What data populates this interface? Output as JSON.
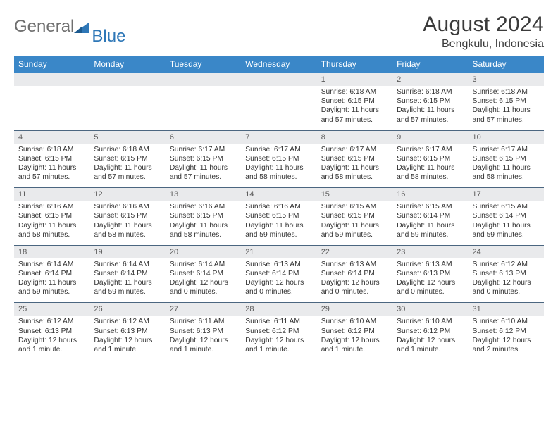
{
  "brand": {
    "name1": "General",
    "name2": "Blue"
  },
  "title": "August 2024",
  "subtitle": "Bengkulu, Indonesia",
  "header_bg": "#3a87c8",
  "daynum_bg": "#e9eaec",
  "daynum_border": "#4b6680",
  "weekdays": [
    "Sunday",
    "Monday",
    "Tuesday",
    "Wednesday",
    "Thursday",
    "Friday",
    "Saturday"
  ],
  "weeks": [
    [
      null,
      null,
      null,
      null,
      {
        "d": "1",
        "sr": "6:18 AM",
        "ss": "6:15 PM",
        "dl": "11 hours and 57 minutes."
      },
      {
        "d": "2",
        "sr": "6:18 AM",
        "ss": "6:15 PM",
        "dl": "11 hours and 57 minutes."
      },
      {
        "d": "3",
        "sr": "6:18 AM",
        "ss": "6:15 PM",
        "dl": "11 hours and 57 minutes."
      }
    ],
    [
      {
        "d": "4",
        "sr": "6:18 AM",
        "ss": "6:15 PM",
        "dl": "11 hours and 57 minutes."
      },
      {
        "d": "5",
        "sr": "6:18 AM",
        "ss": "6:15 PM",
        "dl": "11 hours and 57 minutes."
      },
      {
        "d": "6",
        "sr": "6:17 AM",
        "ss": "6:15 PM",
        "dl": "11 hours and 57 minutes."
      },
      {
        "d": "7",
        "sr": "6:17 AM",
        "ss": "6:15 PM",
        "dl": "11 hours and 58 minutes."
      },
      {
        "d": "8",
        "sr": "6:17 AM",
        "ss": "6:15 PM",
        "dl": "11 hours and 58 minutes."
      },
      {
        "d": "9",
        "sr": "6:17 AM",
        "ss": "6:15 PM",
        "dl": "11 hours and 58 minutes."
      },
      {
        "d": "10",
        "sr": "6:17 AM",
        "ss": "6:15 PM",
        "dl": "11 hours and 58 minutes."
      }
    ],
    [
      {
        "d": "11",
        "sr": "6:16 AM",
        "ss": "6:15 PM",
        "dl": "11 hours and 58 minutes."
      },
      {
        "d": "12",
        "sr": "6:16 AM",
        "ss": "6:15 PM",
        "dl": "11 hours and 58 minutes."
      },
      {
        "d": "13",
        "sr": "6:16 AM",
        "ss": "6:15 PM",
        "dl": "11 hours and 58 minutes."
      },
      {
        "d": "14",
        "sr": "6:16 AM",
        "ss": "6:15 PM",
        "dl": "11 hours and 59 minutes."
      },
      {
        "d": "15",
        "sr": "6:15 AM",
        "ss": "6:15 PM",
        "dl": "11 hours and 59 minutes."
      },
      {
        "d": "16",
        "sr": "6:15 AM",
        "ss": "6:14 PM",
        "dl": "11 hours and 59 minutes."
      },
      {
        "d": "17",
        "sr": "6:15 AM",
        "ss": "6:14 PM",
        "dl": "11 hours and 59 minutes."
      }
    ],
    [
      {
        "d": "18",
        "sr": "6:14 AM",
        "ss": "6:14 PM",
        "dl": "11 hours and 59 minutes."
      },
      {
        "d": "19",
        "sr": "6:14 AM",
        "ss": "6:14 PM",
        "dl": "11 hours and 59 minutes."
      },
      {
        "d": "20",
        "sr": "6:14 AM",
        "ss": "6:14 PM",
        "dl": "12 hours and 0 minutes."
      },
      {
        "d": "21",
        "sr": "6:13 AM",
        "ss": "6:14 PM",
        "dl": "12 hours and 0 minutes."
      },
      {
        "d": "22",
        "sr": "6:13 AM",
        "ss": "6:14 PM",
        "dl": "12 hours and 0 minutes."
      },
      {
        "d": "23",
        "sr": "6:13 AM",
        "ss": "6:13 PM",
        "dl": "12 hours and 0 minutes."
      },
      {
        "d": "24",
        "sr": "6:12 AM",
        "ss": "6:13 PM",
        "dl": "12 hours and 0 minutes."
      }
    ],
    [
      {
        "d": "25",
        "sr": "6:12 AM",
        "ss": "6:13 PM",
        "dl": "12 hours and 1 minute."
      },
      {
        "d": "26",
        "sr": "6:12 AM",
        "ss": "6:13 PM",
        "dl": "12 hours and 1 minute."
      },
      {
        "d": "27",
        "sr": "6:11 AM",
        "ss": "6:13 PM",
        "dl": "12 hours and 1 minute."
      },
      {
        "d": "28",
        "sr": "6:11 AM",
        "ss": "6:12 PM",
        "dl": "12 hours and 1 minute."
      },
      {
        "d": "29",
        "sr": "6:10 AM",
        "ss": "6:12 PM",
        "dl": "12 hours and 1 minute."
      },
      {
        "d": "30",
        "sr": "6:10 AM",
        "ss": "6:12 PM",
        "dl": "12 hours and 1 minute."
      },
      {
        "d": "31",
        "sr": "6:10 AM",
        "ss": "6:12 PM",
        "dl": "12 hours and 2 minutes."
      }
    ]
  ],
  "labels": {
    "sunrise": "Sunrise:",
    "sunset": "Sunset:",
    "daylight": "Daylight:"
  }
}
